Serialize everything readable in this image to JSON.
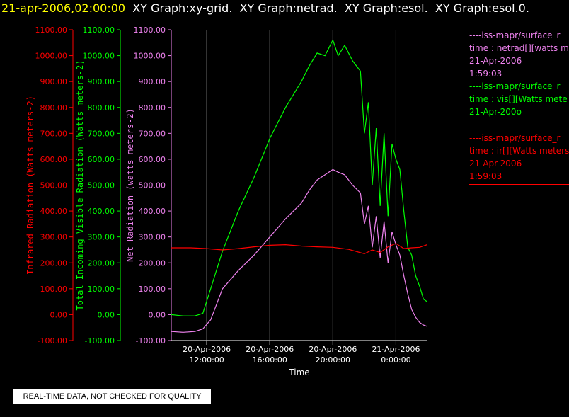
{
  "header": {
    "timestamp": "21-apr-2006,02:00:00",
    "graphs": [
      "XY Graph:xy-grid.",
      "XY Graph:netrad.",
      "XY Graph:esol.",
      "XY Graph:esol.0."
    ]
  },
  "disclaimer": "REAL-TIME DATA, NOT CHECKED FOR QUALITY",
  "legend": [
    {
      "name": "----iss-mapr/surface_r",
      "desc": "time : netrad[][watts me",
      "date": "21-Apr-2006",
      "time": "1:59:03",
      "color": "#ee82ee"
    },
    {
      "name": "----iss-mapr/surface_r",
      "desc": "time : vis[][Watts mete",
      "date": "21-Apr-200o",
      "time": "",
      "color": "#00ff00"
    },
    {
      "name": "----iss-mapr/surface_r",
      "desc": "time : ir[][Watts meters",
      "date": "21-Apr-2006",
      "time": "1:59:03",
      "color": "#ff0000"
    }
  ],
  "chart_data": {
    "type": "line",
    "xlabel": "Time",
    "xlim": [
      "2006-04-20T09:45:00",
      "2006-04-21T02:00:00"
    ],
    "xticks": [
      {
        "t": "2006-04-20T12:00:00",
        "label1": "20-Apr-2006",
        "label2": "12:00:00"
      },
      {
        "t": "2006-04-20T16:00:00",
        "label1": "20-Apr-2006",
        "label2": "16:00:00"
      },
      {
        "t": "2006-04-20T20:00:00",
        "label1": "20-Apr-2006",
        "label2": "20:00:00"
      },
      {
        "t": "2006-04-21T00:00:00",
        "label1": "21-Apr-2006",
        "label2": "0:00:00"
      }
    ],
    "grid_x": true,
    "axes": [
      {
        "id": "ir",
        "label": "Infrared Radiation (Watts meters-2)",
        "color": "#ff0000",
        "ylim": [
          -100,
          1100
        ],
        "ticks": [
          "-100.00",
          "0.00",
          "100.00",
          "200.00",
          "300.00",
          "400.00",
          "500.00",
          "600.00",
          "700.00",
          "800.00",
          "900.00",
          "1000.00",
          "1100.00"
        ]
      },
      {
        "id": "vis",
        "label": "Total Incoming Visible Radiation (Watts meters-2)",
        "color": "#00ff00",
        "ylim": [
          -100,
          1100
        ],
        "ticks": [
          "-100.00",
          "0.00",
          "100.00",
          "200.00",
          "300.00",
          "400.00",
          "500.00",
          "600.00",
          "700.00",
          "800.00",
          "900.00",
          "1000.00",
          "1100.00"
        ]
      },
      {
        "id": "net",
        "label": "Net Radiation (watts meters-2)",
        "color": "#ee82ee",
        "ylim": [
          -100,
          1100
        ],
        "ticks": [
          "-100.00",
          "0.00",
          "100.00",
          "200.00",
          "300.00",
          "400.00",
          "500.00",
          "600.00",
          "700.00",
          "800.00",
          "900.00",
          "1000.00",
          "1100.00"
        ]
      }
    ],
    "series": [
      {
        "axis": "vis",
        "color": "#00ff00",
        "x": [
          "2006-04-20T09:45:00",
          "2006-04-20T10:30:00",
          "2006-04-20T11:15:00",
          "2006-04-20T11:45:00",
          "2006-04-20T12:15:00",
          "2006-04-20T13:00:00",
          "2006-04-20T14:00:00",
          "2006-04-20T15:00:00",
          "2006-04-20T16:00:00",
          "2006-04-20T17:00:00",
          "2006-04-20T18:00:00",
          "2006-04-20T18:30:00",
          "2006-04-20T19:00:00",
          "2006-04-20T19:30:00",
          "2006-04-20T20:00:00",
          "2006-04-20T20:20:00",
          "2006-04-20T20:45:00",
          "2006-04-20T21:15:00",
          "2006-04-20T21:45:00",
          "2006-04-20T22:00:00",
          "2006-04-20T22:15:00",
          "2006-04-20T22:30:00",
          "2006-04-20T22:45:00",
          "2006-04-20T23:00:00",
          "2006-04-20T23:15:00",
          "2006-04-20T23:30:00",
          "2006-04-20T23:45:00",
          "2006-04-21T00:00:00",
          "2006-04-21T00:15:00",
          "2006-04-21T00:30:00",
          "2006-04-21T00:45:00",
          "2006-04-21T01:00:00",
          "2006-04-21T01:15:00",
          "2006-04-21T01:30:00",
          "2006-04-21T01:45:00",
          "2006-04-21T01:59:00"
        ],
        "y": [
          0,
          -5,
          -5,
          5,
          100,
          245,
          400,
          530,
          680,
          800,
          900,
          960,
          1010,
          1000,
          1060,
          1000,
          1040,
          980,
          940,
          700,
          820,
          500,
          720,
          420,
          700,
          380,
          660,
          600,
          560,
          400,
          260,
          230,
          150,
          110,
          60,
          50
        ]
      },
      {
        "axis": "net",
        "color": "#ee82ee",
        "x": [
          "2006-04-20T09:45:00",
          "2006-04-20T10:30:00",
          "2006-04-20T11:15:00",
          "2006-04-20T11:45:00",
          "2006-04-20T12:15:00",
          "2006-04-20T13:00:00",
          "2006-04-20T14:00:00",
          "2006-04-20T15:00:00",
          "2006-04-20T16:00:00",
          "2006-04-20T17:00:00",
          "2006-04-20T18:00:00",
          "2006-04-20T18:30:00",
          "2006-04-20T19:00:00",
          "2006-04-20T19:30:00",
          "2006-04-20T20:00:00",
          "2006-04-20T20:20:00",
          "2006-04-20T20:45:00",
          "2006-04-20T21:15:00",
          "2006-04-20T21:45:00",
          "2006-04-20T22:00:00",
          "2006-04-20T22:15:00",
          "2006-04-20T22:30:00",
          "2006-04-20T22:45:00",
          "2006-04-20T23:00:00",
          "2006-04-20T23:15:00",
          "2006-04-20T23:30:00",
          "2006-04-20T23:45:00",
          "2006-04-21T00:00:00",
          "2006-04-21T00:15:00",
          "2006-04-21T00:30:00",
          "2006-04-21T00:45:00",
          "2006-04-21T01:00:00",
          "2006-04-21T01:15:00",
          "2006-04-21T01:30:00",
          "2006-04-21T01:45:00",
          "2006-04-21T01:59:00"
        ],
        "y": [
          -65,
          -68,
          -65,
          -55,
          -20,
          100,
          170,
          230,
          300,
          370,
          430,
          480,
          520,
          540,
          560,
          550,
          540,
          500,
          470,
          350,
          420,
          260,
          380,
          220,
          360,
          200,
          320,
          270,
          230,
          150,
          80,
          20,
          -10,
          -30,
          -40,
          -45
        ]
      },
      {
        "axis": "ir",
        "color": "#ff0000",
        "x": [
          "2006-04-20T09:45:00",
          "2006-04-20T11:00:00",
          "2006-04-20T12:00:00",
          "2006-04-20T13:00:00",
          "2006-04-20T14:00:00",
          "2006-04-20T15:00:00",
          "2006-04-20T16:00:00",
          "2006-04-20T17:00:00",
          "2006-04-20T18:00:00",
          "2006-04-20T19:00:00",
          "2006-04-20T20:00:00",
          "2006-04-20T21:00:00",
          "2006-04-20T22:00:00",
          "2006-04-20T22:30:00",
          "2006-04-20T23:00:00",
          "2006-04-20T23:30:00",
          "2006-04-21T00:00:00",
          "2006-04-21T00:30:00",
          "2006-04-21T01:00:00",
          "2006-04-21T01:30:00",
          "2006-04-21T01:59:00"
        ],
        "y": [
          258,
          258,
          255,
          250,
          255,
          262,
          268,
          270,
          265,
          262,
          260,
          252,
          235,
          250,
          240,
          262,
          275,
          255,
          258,
          260,
          270
        ]
      }
    ]
  }
}
